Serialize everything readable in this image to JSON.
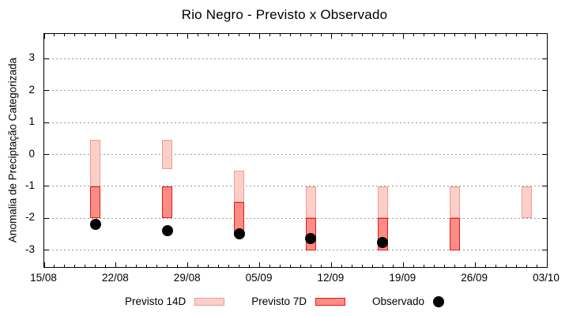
{
  "title": "Rio Negro - Previsto x Observado",
  "chart_data": {
    "type": "bar",
    "subtype": "weekly forecast range bars with observed points",
    "title": "Rio Negro - Previsto x Observado",
    "xlabel": "",
    "ylabel": "Anomalia de Preciptação Categorizada",
    "x_tick_labels": [
      "15/08",
      "22/08",
      "29/08",
      "05/09",
      "12/09",
      "19/09",
      "26/09",
      "03/10"
    ],
    "x_major_tick_days": [
      0,
      7,
      14,
      21,
      28,
      35,
      42,
      49
    ],
    "x_total_days": 49,
    "x_minor_tick_every_days": 1,
    "y_ticks": [
      3,
      2,
      1,
      0,
      -1,
      -2,
      -3
    ],
    "ylim": [
      -3.53,
      3.78
    ],
    "grid": "horizontal dotted gray lines at integer y values",
    "legend_position": "bottom-center",
    "series": [
      {
        "name": "Previsto 14D",
        "type": "range-bar",
        "fill": "#fbcfc9",
        "border": "#f29a92"
      },
      {
        "name": "Previsto 7D",
        "type": "range-bar",
        "fill": "#fa8d86",
        "border": "#e81919"
      },
      {
        "name": "Observado",
        "type": "scatter",
        "fill": "#000000",
        "marker": "filled-circle"
      }
    ],
    "groups": [
      {
        "date": "20/08",
        "day_offset": 5,
        "previsto_14d": [
          0.45,
          -1.0
        ],
        "previsto_7d": [
          -1.0,
          -2.0
        ],
        "observado": -2.2
      },
      {
        "date": "27/08",
        "day_offset": 12,
        "previsto_14d": [
          0.45,
          -0.45
        ],
        "previsto_7d": [
          -1.0,
          -2.0
        ],
        "observado": -2.4
      },
      {
        "date": "03/09",
        "day_offset": 19,
        "previsto_14d": [
          -0.5,
          -1.5
        ],
        "previsto_7d": [
          -1.5,
          -2.5
        ],
        "observado": -2.5
      },
      {
        "date": "10/09",
        "day_offset": 26,
        "previsto_14d": [
          -1.0,
          -2.0
        ],
        "previsto_7d": [
          -2.0,
          -3.0
        ],
        "observado": -2.65
      },
      {
        "date": "17/09",
        "day_offset": 33,
        "previsto_14d": [
          -1.0,
          -2.0
        ],
        "previsto_7d": [
          -2.0,
          -3.0
        ],
        "observado": -2.75
      },
      {
        "date": "24/09",
        "day_offset": 40,
        "previsto_14d": [
          -1.0,
          -2.0
        ],
        "previsto_7d": [
          -2.0,
          -3.0
        ],
        "observado": null
      },
      {
        "date": "01/10",
        "day_offset": 47,
        "previsto_14d": [
          -1.0,
          -2.0
        ],
        "previsto_7d": null,
        "observado": null
      }
    ]
  },
  "colors": {
    "background": "#ffffff",
    "axis": "#000000",
    "grid": "#999999",
    "previsto_14d_fill": "#fbcfc9",
    "previsto_14d_border": "#f29a92",
    "previsto_7d_fill": "#fa8d86",
    "previsto_7d_border": "#e81919",
    "observado": "#000000"
  }
}
